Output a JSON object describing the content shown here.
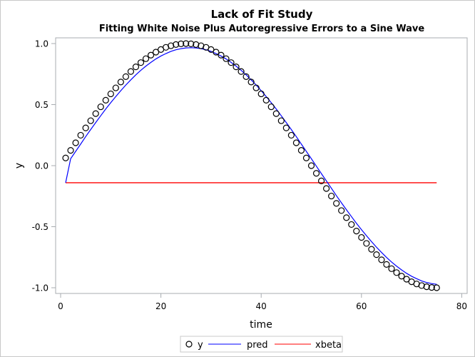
{
  "chart_data": {
    "type": "line",
    "title": "Lack of Fit Study",
    "subtitle": "Fitting White Noise Plus Autoregressive Errors to a Sine Wave",
    "xlabel": "time",
    "ylabel": "y",
    "xlim": [
      -2,
      81
    ],
    "ylim": [
      -1.05,
      1.05
    ],
    "xticks": [
      "0",
      "20",
      "40",
      "60",
      "80"
    ],
    "yticks": [
      "-1.0",
      "-0.5",
      "0.0",
      "0.5",
      "1.0"
    ],
    "grid": false,
    "legend_position": "bottom",
    "x_start": 1,
    "series": [
      {
        "name": "y",
        "kind": "scatter",
        "marker": "open-circle",
        "color": "#000000",
        "values": [
          0.063,
          0.125,
          0.187,
          0.249,
          0.309,
          0.368,
          0.426,
          0.482,
          0.536,
          0.588,
          0.637,
          0.685,
          0.729,
          0.771,
          0.809,
          0.844,
          0.876,
          0.905,
          0.93,
          0.951,
          0.969,
          0.982,
          0.992,
          0.998,
          1.0,
          0.998,
          0.992,
          0.982,
          0.969,
          0.951,
          0.93,
          0.905,
          0.876,
          0.844,
          0.809,
          0.771,
          0.729,
          0.685,
          0.637,
          0.588,
          0.536,
          0.482,
          0.426,
          0.368,
          0.309,
          0.249,
          0.187,
          0.125,
          0.063,
          0.0,
          -0.063,
          -0.125,
          -0.187,
          -0.249,
          -0.309,
          -0.368,
          -0.426,
          -0.482,
          -0.536,
          -0.588,
          -0.637,
          -0.685,
          -0.729,
          -0.771,
          -0.809,
          -0.844,
          -0.876,
          -0.905,
          -0.93,
          -0.951,
          -0.969,
          -0.982,
          -0.992,
          -0.998,
          -1.0
        ]
      },
      {
        "name": "pred",
        "kind": "line",
        "color": "#0000ff",
        "values": [
          -0.14,
          0.057,
          0.117,
          0.177,
          0.238,
          0.296,
          0.353,
          0.409,
          0.464,
          0.516,
          0.566,
          0.614,
          0.66,
          0.703,
          0.744,
          0.781,
          0.815,
          0.846,
          0.874,
          0.898,
          0.918,
          0.936,
          0.949,
          0.958,
          0.964,
          0.966,
          0.964,
          0.958,
          0.949,
          0.936,
          0.918,
          0.898,
          0.874,
          0.846,
          0.815,
          0.781,
          0.744,
          0.703,
          0.66,
          0.614,
          0.566,
          0.516,
          0.464,
          0.409,
          0.353,
          0.296,
          0.238,
          0.177,
          0.117,
          0.057,
          -0.004,
          -0.065,
          -0.125,
          -0.185,
          -0.246,
          -0.304,
          -0.361,
          -0.417,
          -0.472,
          -0.524,
          -0.574,
          -0.622,
          -0.668,
          -0.711,
          -0.752,
          -0.789,
          -0.823,
          -0.854,
          -0.882,
          -0.906,
          -0.926,
          -0.944,
          -0.957,
          -0.966,
          -0.972
        ]
      },
      {
        "name": "xbeta",
        "kind": "line",
        "color": "#ff0000",
        "x": [
          1,
          75
        ],
        "values": [
          -0.14,
          -0.14
        ]
      }
    ]
  }
}
